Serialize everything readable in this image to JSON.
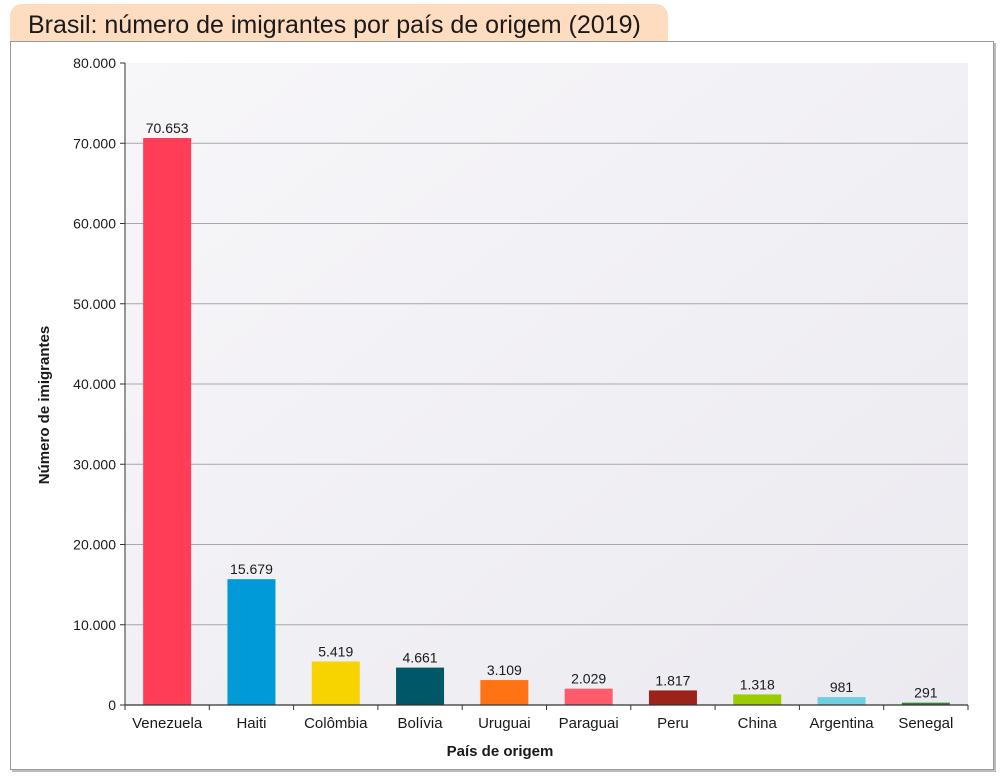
{
  "chart_data": {
    "type": "bar",
    "title": "Brasil: número de imigrantes por país de origem (2019)",
    "xlabel": "País de origem",
    "ylabel": "Número de imigrantes",
    "categories": [
      "Venezuela",
      "Haiti",
      "Colômbia",
      "Bolívia",
      "Uruguai",
      "Paraguai",
      "Peru",
      "China",
      "Argentina",
      "Senegal"
    ],
    "values": [
      70653,
      15679,
      5419,
      4661,
      3109,
      2029,
      1817,
      1318,
      981,
      291
    ],
    "value_labels": [
      "70.653",
      "15.679",
      "5.419",
      "4.661",
      "3.109",
      "2.029",
      "1.817",
      "1.318",
      "981",
      "291"
    ],
    "colors": [
      "#ff3d57",
      "#009ad8",
      "#f7d400",
      "#005866",
      "#ff7314",
      "#ff5b6b",
      "#9c2319",
      "#9ccb00",
      "#6dcfe0",
      "#2b8a2b"
    ],
    "ylim": [
      0,
      80000
    ],
    "yticks": [
      0,
      10000,
      20000,
      30000,
      40000,
      50000,
      60000,
      70000,
      80000
    ],
    "ytick_labels": [
      "0",
      "10.000",
      "20.000",
      "30.000",
      "40.000",
      "50.000",
      "60.000",
      "70.000",
      "80.000"
    ],
    "grid": true,
    "title_background": "#fddcc0",
    "plot_background": "#f0eff3"
  }
}
